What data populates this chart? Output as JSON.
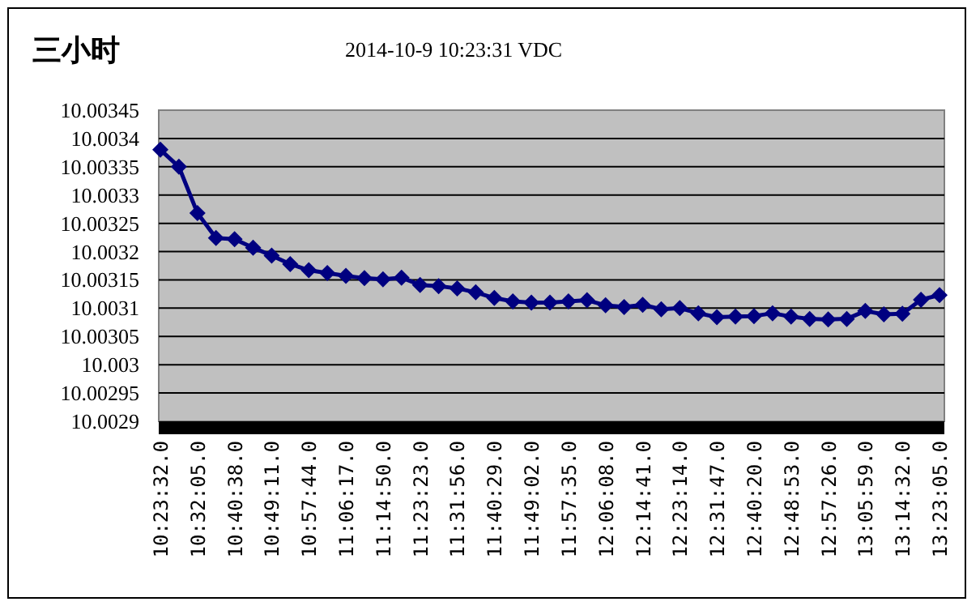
{
  "chart_data": {
    "type": "line",
    "title": "三小时",
    "subtitle": "2014-10-9 10:23:31 VDC",
    "categories": [
      "10:23:32.0",
      null,
      "10:32:05.0",
      null,
      "10:40:38.0",
      null,
      "10:49:11.0",
      null,
      "10:57:44.0",
      null,
      "11:06:17.0",
      null,
      "11:14:50.0",
      null,
      "11:23:23.0",
      null,
      "11:31:56.0",
      null,
      "11:40:29.0",
      null,
      "11:49:02.0",
      null,
      "11:57:35.0",
      null,
      "12:06:08.0",
      null,
      "12:14:41.0",
      null,
      "12:23:14.0",
      null,
      "12:31:47.0",
      null,
      "12:40:20.0",
      null,
      "12:48:53.0",
      null,
      "12:57:26.0",
      null,
      "13:05:59.0",
      null,
      "13:14:32.0",
      null,
      "13:23:05.0"
    ],
    "series": [
      {
        "color": "#000080",
        "values": [
          10.00338,
          10.00335,
          10.003268,
          10.003224,
          10.003222,
          10.003207,
          10.003193,
          10.003178,
          10.003167,
          10.003162,
          10.003157,
          10.003153,
          10.003151,
          10.003154,
          10.003141,
          10.003139,
          10.003135,
          10.003128,
          10.003118,
          10.003112,
          10.00311,
          10.00311,
          10.003112,
          10.003114,
          10.003105,
          10.003102,
          10.003106,
          10.003098,
          10.0031,
          10.003091,
          10.003084,
          10.003085,
          10.003086,
          10.003091,
          10.003085,
          10.003081,
          10.00308,
          10.003081,
          10.003095,
          10.003089,
          10.00309,
          10.003115,
          10.003123
        ]
      }
    ],
    "ylim": [
      10.0029,
      10.00345
    ],
    "yticks": [
      10.0029,
      10.00295,
      10.003,
      10.00305,
      10.0031,
      10.00315,
      10.0032,
      10.00325,
      10.0033,
      10.00335,
      10.0034,
      10.00345
    ],
    "grid": "y",
    "marker": "diamond",
    "line_style": "solid"
  }
}
